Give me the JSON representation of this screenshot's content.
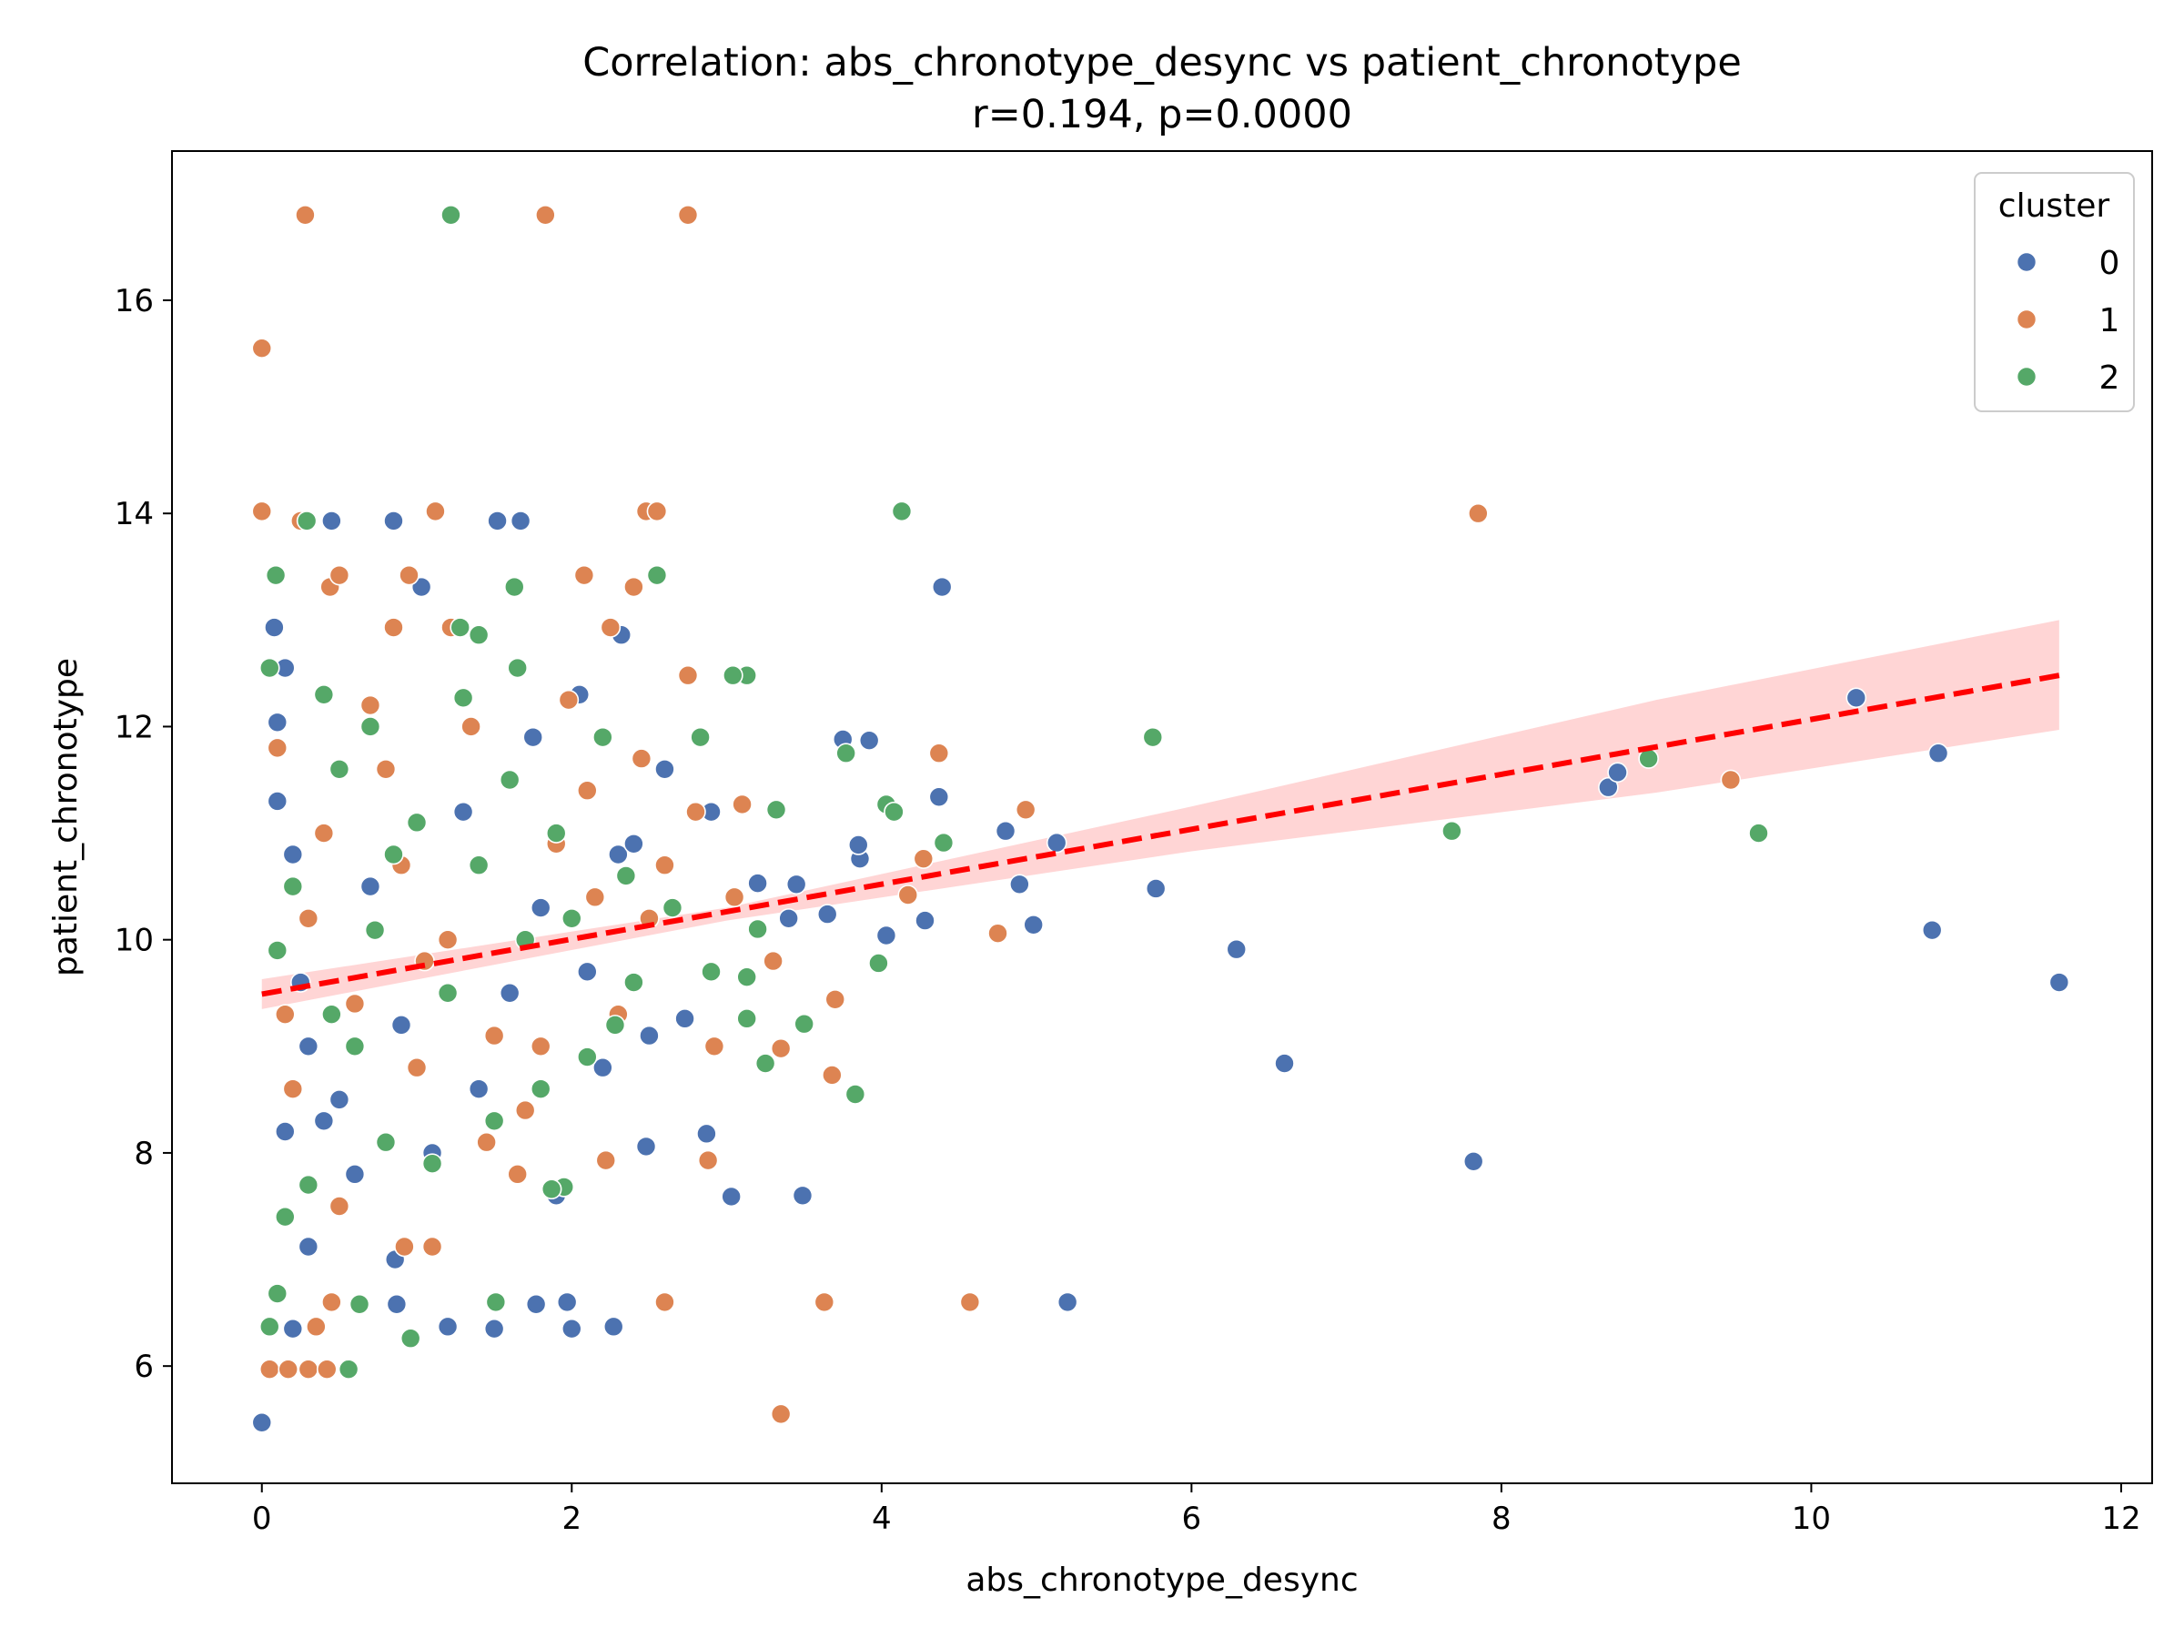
{
  "chart_data": {
    "type": "scatter",
    "title": "Correlation: abs_chronotype_desync vs patient_chronotype",
    "subtitle": "r=0.194, p=0.0000",
    "xlabel": "abs_chronotype_desync",
    "ylabel": "patient_chronotype",
    "xlim": [
      -0.58,
      12.2
    ],
    "ylim": [
      4.9,
      17.4
    ],
    "xticks": [
      0,
      2,
      4,
      6,
      8,
      10,
      12
    ],
    "yticks": [
      6,
      8,
      10,
      12,
      14,
      16
    ],
    "grid": false,
    "legend": {
      "title": "cluster",
      "position": "top-right",
      "entries": [
        "0",
        "1",
        "2"
      ]
    },
    "colors": {
      "0": "#4c72b0",
      "1": "#dd8452",
      "2": "#55a868",
      "regression": "#ff0000",
      "confidence_band": "#ffb3b3"
    },
    "regression": {
      "x": [
        0,
        11.6
      ],
      "y": [
        9.49,
        12.48
      ],
      "style": "dashed",
      "ci_lower": [
        [
          0,
          9.35
        ],
        [
          3,
          10.18
        ],
        [
          6,
          10.83
        ],
        [
          9,
          11.38
        ],
        [
          11.6,
          11.97
        ]
      ],
      "ci_upper": [
        [
          0,
          9.63
        ],
        [
          3,
          10.3
        ],
        [
          6,
          11.25
        ],
        [
          9,
          12.25
        ],
        [
          11.6,
          13.0
        ]
      ]
    },
    "series": [
      {
        "name": "0",
        "points": [
          [
            0,
            5.47
          ],
          [
            0.08,
            12.93
          ],
          [
            0.1,
            12.04
          ],
          [
            0.15,
            12.55
          ],
          [
            0.2,
            6.35
          ],
          [
            0.3,
            7.12
          ],
          [
            0.45,
            13.93
          ],
          [
            0.87,
            6.58
          ],
          [
            0.86,
            7.0
          ],
          [
            0.85,
            13.93
          ],
          [
            1.03,
            13.31
          ],
          [
            1.2,
            6.37
          ],
          [
            1.5,
            6.35
          ],
          [
            1.52,
            13.93
          ],
          [
            1.67,
            13.93
          ],
          [
            1.77,
            6.58
          ],
          [
            1.97,
            6.6
          ],
          [
            2.0,
            6.35
          ],
          [
            2.27,
            6.37
          ],
          [
            2.32,
            12.86
          ],
          [
            2.48,
            8.06
          ],
          [
            2.73,
            9.26
          ],
          [
            2.87,
            8.18
          ],
          [
            3.03,
            7.59
          ],
          [
            3.49,
            7.6
          ],
          [
            3.65,
            10.24
          ],
          [
            3.75,
            11.88
          ],
          [
            3.86,
            10.76
          ],
          [
            3.92,
            11.87
          ],
          [
            4.03,
            10.04
          ],
          [
            4.28,
            10.18
          ],
          [
            4.37,
            11.34
          ],
          [
            4.39,
            13.31
          ],
          [
            4.8,
            11.02
          ],
          [
            4.89,
            10.52
          ],
          [
            4.98,
            10.14
          ],
          [
            5.13,
            10.91
          ],
          [
            5.2,
            6.6
          ],
          [
            5.77,
            10.48
          ],
          [
            6.29,
            9.91
          ],
          [
            6.6,
            8.84
          ],
          [
            7.82,
            7.92
          ],
          [
            8.69,
            11.43
          ],
          [
            8.75,
            11.57
          ],
          [
            10.29,
            12.27
          ],
          [
            10.78,
            10.09
          ],
          [
            10.82,
            11.75
          ],
          [
            11.6,
            9.6
          ],
          [
            0.3,
            9.0
          ],
          [
            0.5,
            8.5
          ],
          [
            0.7,
            10.5
          ],
          [
            0.9,
            9.2
          ],
          [
            1.1,
            8.0
          ],
          [
            1.3,
            11.2
          ],
          [
            1.6,
            9.5
          ],
          [
            1.8,
            10.3
          ],
          [
            2.1,
            9.7
          ],
          [
            2.3,
            10.8
          ],
          [
            2.6,
            11.6
          ],
          [
            2.75,
            12.48
          ],
          [
            2.9,
            11.2
          ],
          [
            3.2,
            10.53
          ],
          [
            3.4,
            10.2
          ],
          [
            3.45,
            10.52
          ],
          [
            3.85,
            10.89
          ],
          [
            2.4,
            10.9
          ],
          [
            2.2,
            8.8
          ],
          [
            1.9,
            7.6
          ],
          [
            0.6,
            7.8
          ],
          [
            0.4,
            8.3
          ],
          [
            0.2,
            10.8
          ],
          [
            0.1,
            11.3
          ],
          [
            0.15,
            8.2
          ],
          [
            0.25,
            9.6
          ],
          [
            1.4,
            8.6
          ],
          [
            1.75,
            11.9
          ],
          [
            2.05,
            12.3
          ],
          [
            2.5,
            9.1
          ]
        ]
      },
      {
        "name": "1",
        "points": [
          [
            0,
            15.55
          ],
          [
            0,
            14.02
          ],
          [
            0.28,
            16.8
          ],
          [
            1.83,
            16.8
          ],
          [
            2.75,
            16.8
          ],
          [
            0.05,
            5.97
          ],
          [
            0.17,
            5.97
          ],
          [
            0.3,
            5.97
          ],
          [
            0.42,
            5.97
          ],
          [
            0.35,
            6.37
          ],
          [
            0.45,
            6.6
          ],
          [
            0.25,
            13.93
          ],
          [
            0.44,
            13.31
          ],
          [
            0.5,
            13.42
          ],
          [
            0.95,
            13.42
          ],
          [
            1.12,
            14.02
          ],
          [
            2.48,
            14.02
          ],
          [
            2.55,
            14.02
          ],
          [
            2.08,
            13.42
          ],
          [
            2.4,
            13.31
          ],
          [
            0.85,
            12.93
          ],
          [
            1.22,
            12.93
          ],
          [
            2.25,
            12.93
          ],
          [
            2.6,
            6.6
          ],
          [
            3.35,
            5.55
          ],
          [
            3.35,
            8.98
          ],
          [
            3.63,
            6.6
          ],
          [
            3.68,
            8.73
          ],
          [
            3.7,
            9.44
          ],
          [
            2.92,
            9.0
          ],
          [
            2.88,
            7.93
          ],
          [
            2.22,
            7.93
          ],
          [
            1.1,
            7.12
          ],
          [
            0.92,
            7.12
          ],
          [
            4.17,
            10.42
          ],
          [
            4.27,
            10.76
          ],
          [
            4.37,
            11.75
          ],
          [
            4.57,
            6.6
          ],
          [
            4.75,
            10.06
          ],
          [
            4.93,
            11.22
          ],
          [
            7.85,
            14.0
          ],
          [
            9.48,
            11.5
          ],
          [
            2.75,
            12.48
          ],
          [
            1.98,
            12.25
          ],
          [
            0.3,
            10.2
          ],
          [
            0.6,
            9.4
          ],
          [
            0.8,
            11.6
          ],
          [
            1.0,
            8.8
          ],
          [
            1.2,
            10.0
          ],
          [
            1.5,
            9.1
          ],
          [
            1.7,
            8.4
          ],
          [
            1.9,
            10.9
          ],
          [
            2.1,
            11.4
          ],
          [
            2.3,
            9.3
          ],
          [
            2.6,
            10.7
          ],
          [
            2.8,
            11.2
          ],
          [
            3.1,
            11.27
          ],
          [
            3.3,
            9.8
          ],
          [
            3.05,
            10.4
          ],
          [
            2.45,
            11.7
          ],
          [
            0.1,
            11.8
          ],
          [
            0.2,
            8.6
          ],
          [
            0.5,
            7.5
          ],
          [
            0.7,
            12.2
          ],
          [
            1.35,
            12.0
          ],
          [
            1.65,
            7.8
          ],
          [
            2.15,
            10.4
          ],
          [
            1.45,
            8.1
          ],
          [
            0.9,
            10.7
          ],
          [
            0.15,
            9.3
          ],
          [
            0.4,
            11.0
          ],
          [
            1.05,
            9.8
          ],
          [
            1.8,
            9.0
          ],
          [
            2.5,
            10.2
          ]
        ]
      },
      {
        "name": "2",
        "points": [
          [
            1.22,
            16.8
          ],
          [
            0.29,
            13.93
          ],
          [
            0.09,
            13.42
          ],
          [
            1.63,
            13.31
          ],
          [
            2.55,
            13.42
          ],
          [
            1.28,
            12.93
          ],
          [
            1.4,
            12.86
          ],
          [
            1.65,
            12.55
          ],
          [
            0.56,
            5.97
          ],
          [
            0.1,
            6.68
          ],
          [
            0.05,
            6.37
          ],
          [
            0.63,
            6.58
          ],
          [
            0.96,
            6.26
          ],
          [
            1.51,
            6.6
          ],
          [
            4.13,
            14.02
          ],
          [
            3.13,
            12.48
          ],
          [
            3.04,
            12.48
          ],
          [
            3.2,
            10.1
          ],
          [
            3.13,
            9.65
          ],
          [
            3.13,
            9.26
          ],
          [
            3.25,
            8.84
          ],
          [
            3.32,
            11.22
          ],
          [
            3.5,
            9.21
          ],
          [
            3.77,
            11.75
          ],
          [
            3.98,
            9.78
          ],
          [
            4.03,
            11.27
          ],
          [
            4.08,
            11.2
          ],
          [
            3.83,
            8.55
          ],
          [
            4.4,
            10.91
          ],
          [
            5.75,
            11.9
          ],
          [
            7.68,
            11.02
          ],
          [
            8.95,
            11.7
          ],
          [
            9.66,
            11.0
          ],
          [
            2.83,
            11.9
          ],
          [
            1.95,
            7.68
          ],
          [
            1.87,
            7.66
          ],
          [
            0.73,
            10.09
          ],
          [
            0.2,
            10.5
          ],
          [
            0.4,
            12.3
          ],
          [
            0.6,
            9.0
          ],
          [
            0.8,
            8.1
          ],
          [
            1.0,
            11.1
          ],
          [
            1.2,
            9.5
          ],
          [
            1.4,
            10.7
          ],
          [
            1.6,
            11.5
          ],
          [
            1.8,
            8.6
          ],
          [
            2.0,
            10.2
          ],
          [
            2.2,
            11.9
          ],
          [
            2.4,
            9.6
          ],
          [
            2.65,
            10.3
          ],
          [
            2.9,
            9.7
          ],
          [
            0.1,
            9.9
          ],
          [
            0.3,
            7.7
          ],
          [
            0.5,
            11.6
          ],
          [
            0.7,
            12.0
          ],
          [
            1.1,
            7.9
          ],
          [
            1.3,
            12.27
          ],
          [
            1.5,
            8.3
          ],
          [
            1.7,
            10.0
          ],
          [
            1.9,
            11.0
          ],
          [
            2.1,
            8.9
          ],
          [
            2.35,
            10.6
          ],
          [
            0.05,
            12.55
          ],
          [
            0.15,
            7.4
          ],
          [
            0.45,
            9.3
          ],
          [
            0.85,
            10.8
          ],
          [
            2.28,
            9.2
          ]
        ]
      }
    ]
  }
}
